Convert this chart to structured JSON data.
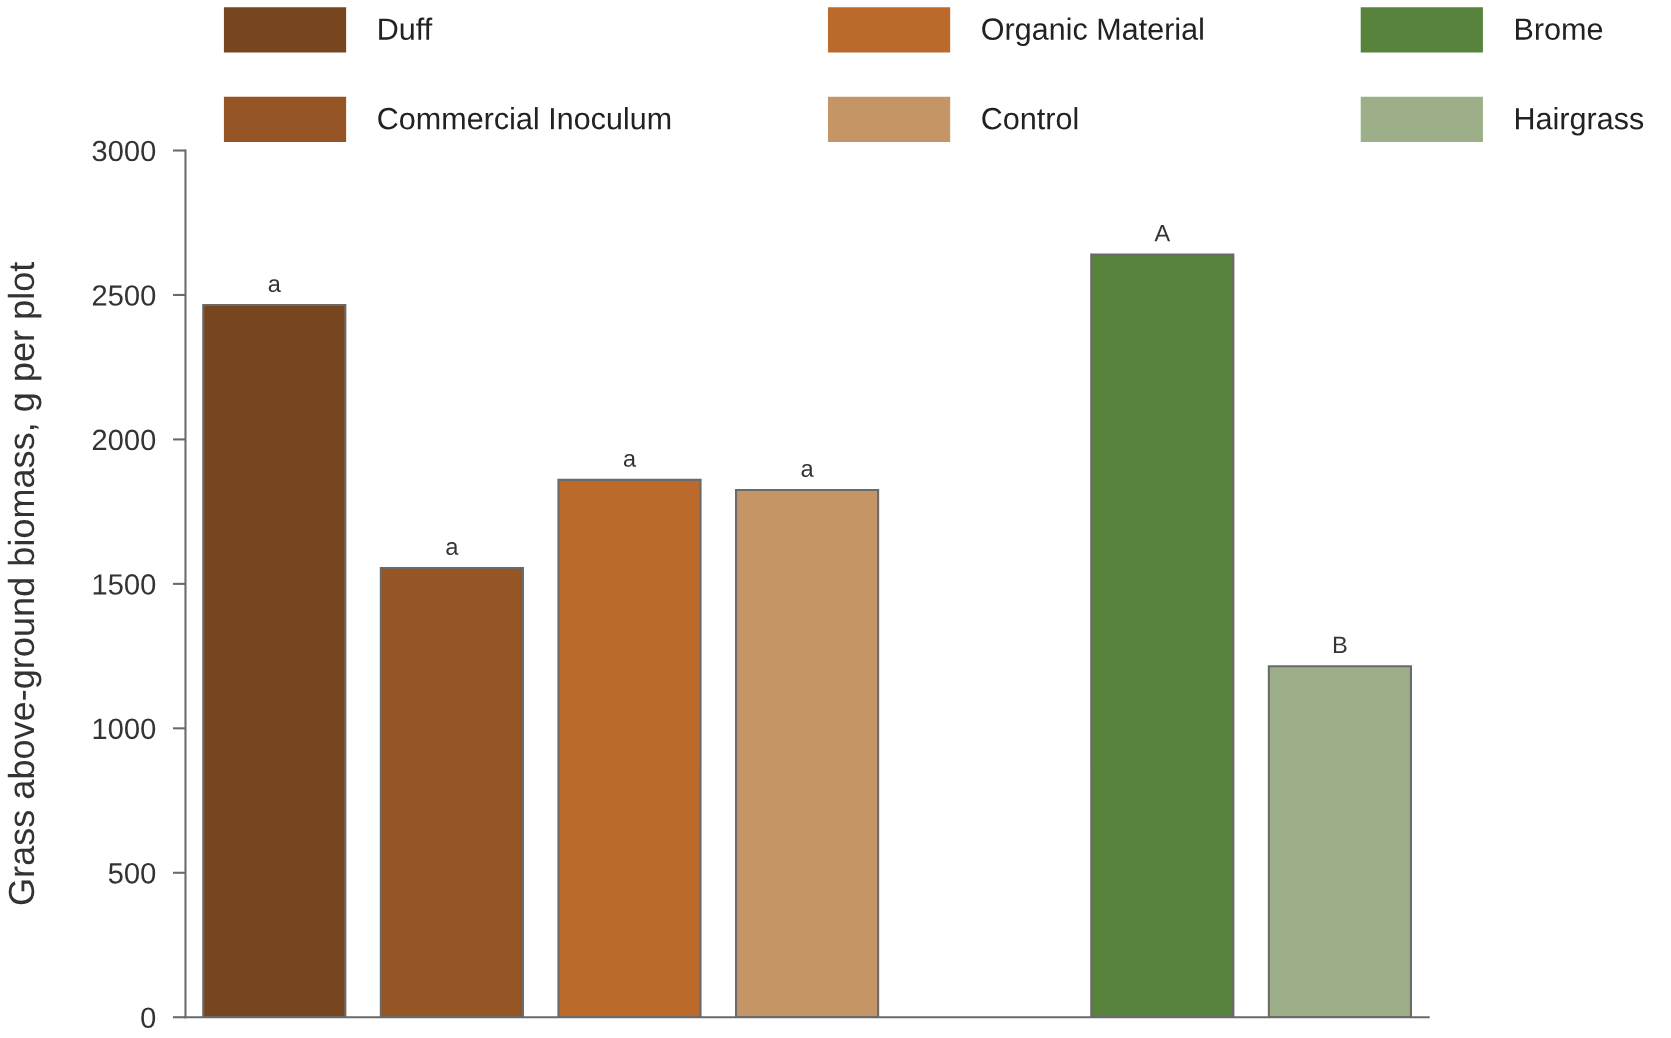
{
  "chart_data": {
    "type": "bar",
    "ylabel": "Grass above-ground biomass, g per plot",
    "categories": [
      null,
      null,
      null,
      null,
      null,
      null,
      null
    ],
    "series": [
      {
        "name": "Duff",
        "color": "#77461f",
        "values": [
          2465,
          null,
          null,
          null,
          null,
          null,
          null
        ],
        "value_labels": [
          "a",
          null,
          null,
          null,
          null,
          null,
          null
        ]
      },
      {
        "name": "Commercial Inoculum",
        "color": "#955524",
        "values": [
          null,
          1555,
          null,
          null,
          null,
          null,
          null
        ],
        "value_labels": [
          null,
          "a",
          null,
          null,
          null,
          null,
          null
        ]
      },
      {
        "name": "Organic Material",
        "color": "#bb6a2c",
        "values": [
          null,
          null,
          1860,
          null,
          null,
          null,
          null
        ],
        "value_labels": [
          null,
          null,
          "a",
          null,
          null,
          null,
          null
        ]
      },
      {
        "name": "Control",
        "color": "#c59566",
        "values": [
          null,
          null,
          null,
          1825,
          null,
          null,
          null
        ],
        "value_labels": [
          null,
          null,
          null,
          "a",
          null,
          null,
          null
        ]
      },
      {
        "name": "Brome",
        "color": "#58833c",
        "values": [
          null,
          null,
          null,
          null,
          null,
          2640,
          null
        ],
        "value_labels": [
          null,
          null,
          null,
          null,
          null,
          "A",
          null
        ]
      },
      {
        "name": "Hairgrass",
        "color": "#9daf88",
        "values": [
          null,
          null,
          null,
          null,
          null,
          null,
          1215
        ],
        "value_labels": [
          null,
          null,
          null,
          null,
          null,
          null,
          "B"
        ]
      }
    ],
    "ylim": [
      0,
      3000
    ],
    "yticks": [
      0,
      500,
      1000,
      1500,
      2000,
      2500,
      3000
    ],
    "grid": false,
    "legend": "top"
  }
}
